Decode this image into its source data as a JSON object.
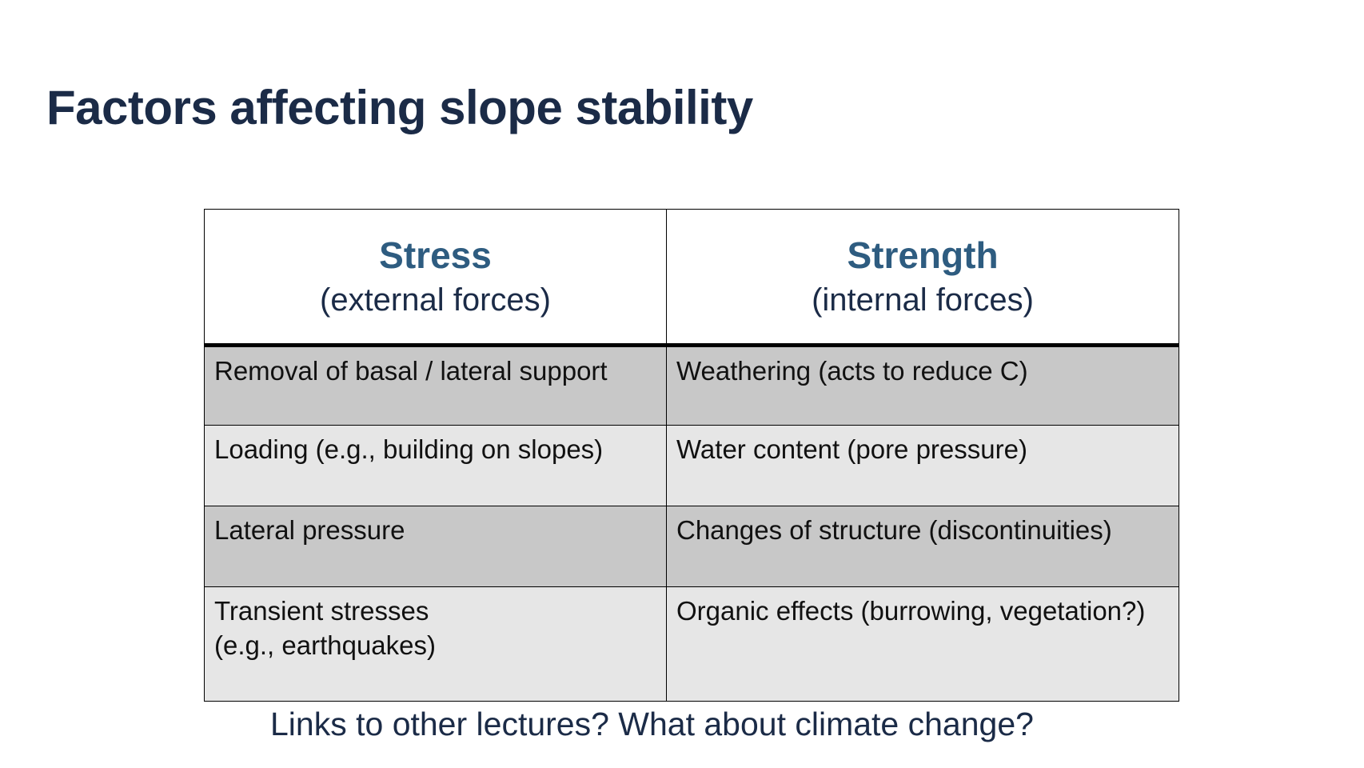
{
  "slide": {
    "title": "Factors affecting slope stability",
    "caption": "Links to other lectures? What about climate change?"
  },
  "table": {
    "headers": [
      {
        "main": "Stress",
        "sub": "(external forces)"
      },
      {
        "main": "Strength",
        "sub": "(internal forces)"
      }
    ],
    "rows": [
      {
        "stress": [
          "Removal of basal / lateral support"
        ],
        "strength": [
          "Weathering (acts to reduce C)"
        ]
      },
      {
        "stress": [
          "Loading (e.g., building on slopes)"
        ],
        "strength": [
          "Water content (pore pressure)"
        ]
      },
      {
        "stress": [
          "Lateral pressure"
        ],
        "strength": [
          "Changes of structure (discontinuities)"
        ]
      },
      {
        "stress": [
          "Transient stresses",
          "(e.g., earthquakes)"
        ],
        "strength": [
          "Organic effects (burrowing, vegetation?)"
        ]
      }
    ]
  },
  "colors": {
    "title": "#1b2b47",
    "header_accent": "#2e5c80",
    "row_dark": "#c8c8c8",
    "row_light": "#e6e6e6"
  }
}
